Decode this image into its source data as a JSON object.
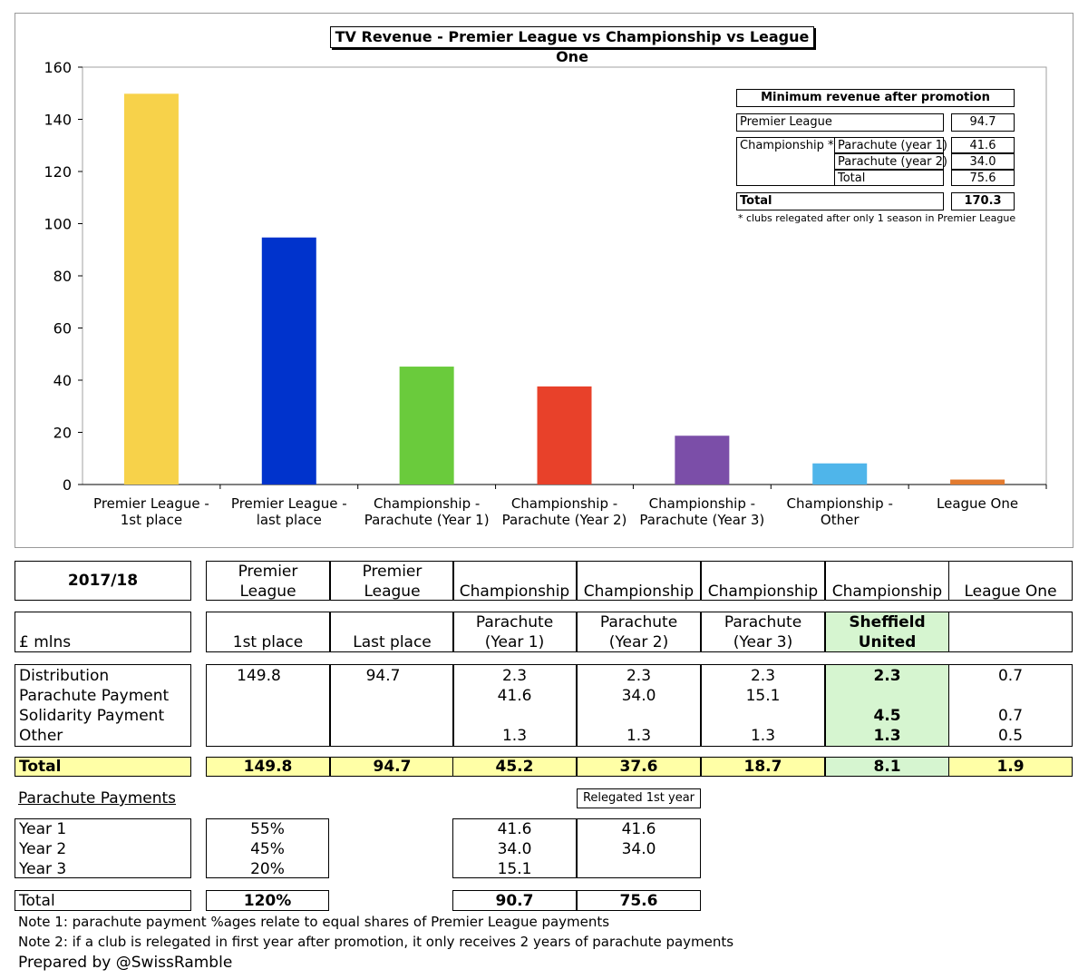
{
  "chart_data": {
    "type": "bar",
    "title": "TV Revenue - Premier League vs Championship vs League One",
    "categories": [
      [
        "Premier League -",
        "1st place"
      ],
      [
        "Premier League -",
        "last place"
      ],
      [
        "Championship -",
        "Parachute (Year 1)"
      ],
      [
        "Championship -",
        "Parachute (Year 2)"
      ],
      [
        "Championship -",
        "Parachute (Year 3)"
      ],
      [
        "Championship -",
        "Other"
      ],
      [
        "League One"
      ]
    ],
    "values": [
      149.8,
      94.7,
      45.2,
      37.6,
      18.7,
      8.1,
      1.9
    ],
    "colors": [
      "#f7d24a",
      "#0033cc",
      "#6acb3c",
      "#e8412a",
      "#7b4ea8",
      "#4fb5ea",
      "#e27b30"
    ],
    "ylim": [
      0,
      160
    ],
    "yticks": [
      0,
      20,
      40,
      60,
      80,
      100,
      120,
      140,
      160
    ],
    "grid": false,
    "xlabel": "",
    "ylabel": ""
  },
  "inset": {
    "title": "Minimum revenue after promotion",
    "premier_label": "Premier League",
    "premier_value": "94.7",
    "championship_label": "Championship *",
    "rows": [
      {
        "label": "Parachute (year 1)",
        "value": "41.6"
      },
      {
        "label": "Parachute (year 2)",
        "value": "34.0"
      },
      {
        "label": "Total",
        "value": "75.6"
      }
    ],
    "total_label": "Total",
    "total_value": "170.3",
    "footnote": "* clubs relegated after only 1 season in Premier League"
  },
  "table": {
    "season": "2017/18",
    "unit": "£ mlns",
    "columns": [
      {
        "h1": [
          "Premier",
          "League"
        ],
        "h2": [
          "1st place"
        ]
      },
      {
        "h1": [
          "Premier",
          "League"
        ],
        "h2": [
          "Last place"
        ]
      },
      {
        "h1": [
          "Championship"
        ],
        "h2": [
          "Parachute",
          "(Year 1)"
        ]
      },
      {
        "h1": [
          "Championship"
        ],
        "h2": [
          "Parachute",
          "(Year 2)"
        ]
      },
      {
        "h1": [
          "Championship"
        ],
        "h2": [
          "Parachute",
          "(Year 3)"
        ]
      },
      {
        "h1": [
          "Championship"
        ],
        "h2": [
          "Sheffield",
          "United"
        ]
      },
      {
        "h1": [
          "League One"
        ],
        "h2": [
          ""
        ]
      }
    ],
    "row_labels": [
      "Distribution",
      "Parachute Payment",
      "Solidarity Payment",
      "Other"
    ],
    "rows": [
      [
        "149.8",
        "",
        "",
        ""
      ],
      [
        "94.7",
        "",
        "",
        ""
      ],
      [
        "2.3",
        "41.6",
        "",
        "1.3"
      ],
      [
        "2.3",
        "34.0",
        "",
        "1.3"
      ],
      [
        "2.3",
        "15.1",
        "",
        "1.3"
      ],
      [
        "2.3",
        "",
        "4.5",
        "1.3"
      ],
      [
        "0.7",
        "",
        "0.7",
        "0.5"
      ]
    ],
    "total_label": "Total",
    "totals": [
      "149.8",
      "94.7",
      "45.2",
      "37.6",
      "18.7",
      "8.1",
      "1.9"
    ]
  },
  "parachute": {
    "heading": "Parachute Payments",
    "relegated_label": "Relegated 1st year",
    "year_labels": [
      "Year 1",
      "Year 2",
      "Year 3"
    ],
    "pct": [
      "55%",
      "45%",
      "20%"
    ],
    "standard": [
      "41.6",
      "34.0",
      "15.1"
    ],
    "relegated": [
      "41.6",
      "34.0",
      ""
    ],
    "total_label": "Total",
    "total_pct": "120%",
    "total_standard": "90.7",
    "total_relegated": "75.6"
  },
  "notes": [
    "Note 1: parachute payment %ages relate to equal shares of Premier League payments",
    "Note 2: if a club is relegated in first year after promotion, it only receives 2 years of parachute payments"
  ],
  "credit": "Prepared by @SwissRamble"
}
